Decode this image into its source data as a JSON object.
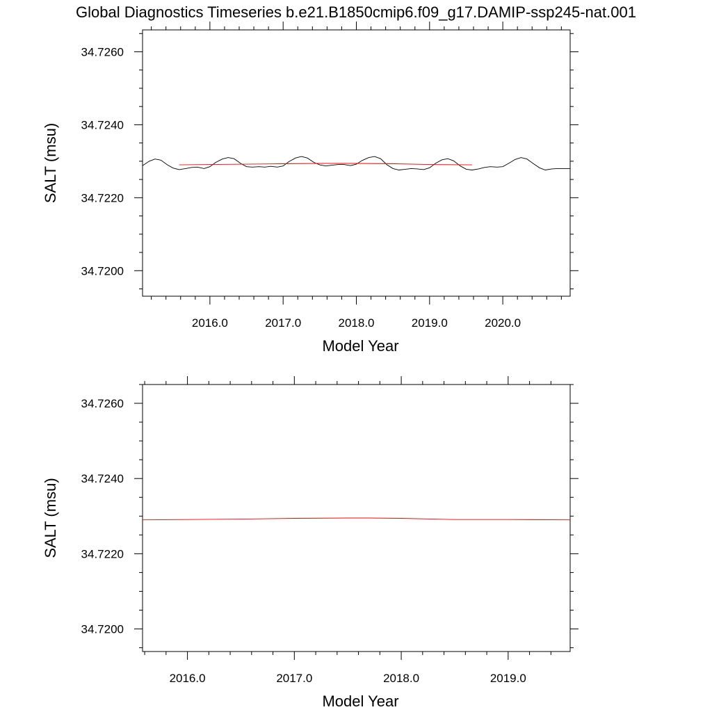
{
  "title": "Global Diagnostics Timeseries b.e21.B1850cmip6.f09_g17.DAMIP-ssp245-nat.001",
  "colors": {
    "raw": "#000000",
    "smooth": "#ff0000",
    "axes": "#000000",
    "background": "#ffffff"
  },
  "chart_data": [
    {
      "type": "line",
      "xlabel": "Model Year",
      "ylabel": "SALT (msu)",
      "xlim": [
        2015.08,
        2020.92
      ],
      "ylim": [
        34.7193,
        34.7266
      ],
      "x_ticks": [
        2016.0,
        2017.0,
        2018.0,
        2019.0,
        2020.0
      ],
      "x_tick_labels": [
        "2016.0",
        "2017.0",
        "2018.0",
        "2019.0",
        "2020.0"
      ],
      "y_ticks": [
        34.72,
        34.722,
        34.724,
        34.726
      ],
      "y_tick_labels": [
        "34.7200",
        "34.7220",
        "34.7240",
        "34.7260"
      ],
      "grid": false,
      "series": [
        {
          "color": "#000000",
          "x": [
            2015.08,
            2015.17,
            2015.25,
            2015.33,
            2015.42,
            2015.5,
            2015.58,
            2015.67,
            2015.75,
            2015.83,
            2015.92,
            2016.0,
            2016.08,
            2016.17,
            2016.25,
            2016.33,
            2016.42,
            2016.5,
            2016.58,
            2016.67,
            2016.75,
            2016.83,
            2016.92,
            2017.0,
            2017.08,
            2017.17,
            2017.25,
            2017.33,
            2017.42,
            2017.5,
            2017.58,
            2017.67,
            2017.75,
            2017.83,
            2017.92,
            2018.0,
            2018.08,
            2018.17,
            2018.25,
            2018.33,
            2018.42,
            2018.5,
            2018.58,
            2018.67,
            2018.75,
            2018.83,
            2018.92,
            2019.0,
            2019.08,
            2019.17,
            2019.25,
            2019.33,
            2019.42,
            2019.5,
            2019.58,
            2019.67,
            2019.75,
            2019.83,
            2019.92,
            2020.0,
            2020.08,
            2020.17,
            2020.25,
            2020.33,
            2020.42,
            2020.5,
            2020.58,
            2020.67,
            2020.75,
            2020.83,
            2020.92
          ],
          "y": [
            34.72288,
            34.723,
            34.72306,
            34.72303,
            34.7229,
            34.72281,
            34.72277,
            34.7228,
            34.72283,
            34.72284,
            34.7228,
            34.72285,
            34.72297,
            34.72306,
            34.7231,
            34.72307,
            34.72294,
            34.72285,
            34.72284,
            34.72285,
            34.72284,
            34.72286,
            34.72284,
            34.72287,
            34.72299,
            34.72309,
            34.72313,
            34.72309,
            34.72297,
            34.7229,
            34.72287,
            34.72289,
            34.72291,
            34.72291,
            34.72288,
            34.72292,
            34.72302,
            34.7231,
            34.72313,
            34.72307,
            34.7229,
            34.7228,
            34.72276,
            34.72278,
            34.7228,
            34.72279,
            34.72277,
            34.72282,
            34.72294,
            34.72304,
            34.72307,
            34.72301,
            34.72287,
            34.72278,
            34.72276,
            34.72279,
            34.72283,
            34.72285,
            34.72284,
            34.72285,
            34.72294,
            34.72305,
            34.7231,
            34.72306,
            34.72293,
            34.72282,
            34.72276,
            34.72279,
            34.7228,
            34.7228,
            34.7228
          ]
        },
        {
          "color": "#ff0000",
          "x": [
            2015.58,
            2016.0,
            2016.5,
            2017.0,
            2017.5,
            2018.0,
            2018.5,
            2019.0,
            2019.58
          ],
          "y": [
            34.7229,
            34.72291,
            34.72292,
            34.72293,
            34.72294,
            34.72294,
            34.72293,
            34.72291,
            34.7229
          ]
        }
      ]
    },
    {
      "type": "line",
      "xlabel": "Model Year",
      "ylabel": "SALT (msu)",
      "xlim": [
        2015.58,
        2019.58
      ],
      "ylim": [
        34.7194,
        34.7265
      ],
      "x_ticks": [
        2016.0,
        2017.0,
        2018.0,
        2019.0
      ],
      "x_tick_labels": [
        "2016.0",
        "2017.0",
        "2018.0",
        "2019.0"
      ],
      "y_ticks": [
        34.72,
        34.722,
        34.724,
        34.726
      ],
      "y_tick_labels": [
        "34.7200",
        "34.7220",
        "34.7240",
        "34.7260"
      ],
      "grid": false,
      "series": [
        {
          "color": "#ff0000",
          "x": [
            2015.58,
            2016.0,
            2016.5,
            2017.0,
            2017.5,
            2017.7,
            2018.0,
            2018.5,
            2019.0,
            2019.58
          ],
          "y": [
            34.7229,
            34.72291,
            34.72292,
            34.72294,
            34.72295,
            34.72295,
            34.72294,
            34.72291,
            34.72291,
            34.7229
          ]
        }
      ]
    }
  ]
}
